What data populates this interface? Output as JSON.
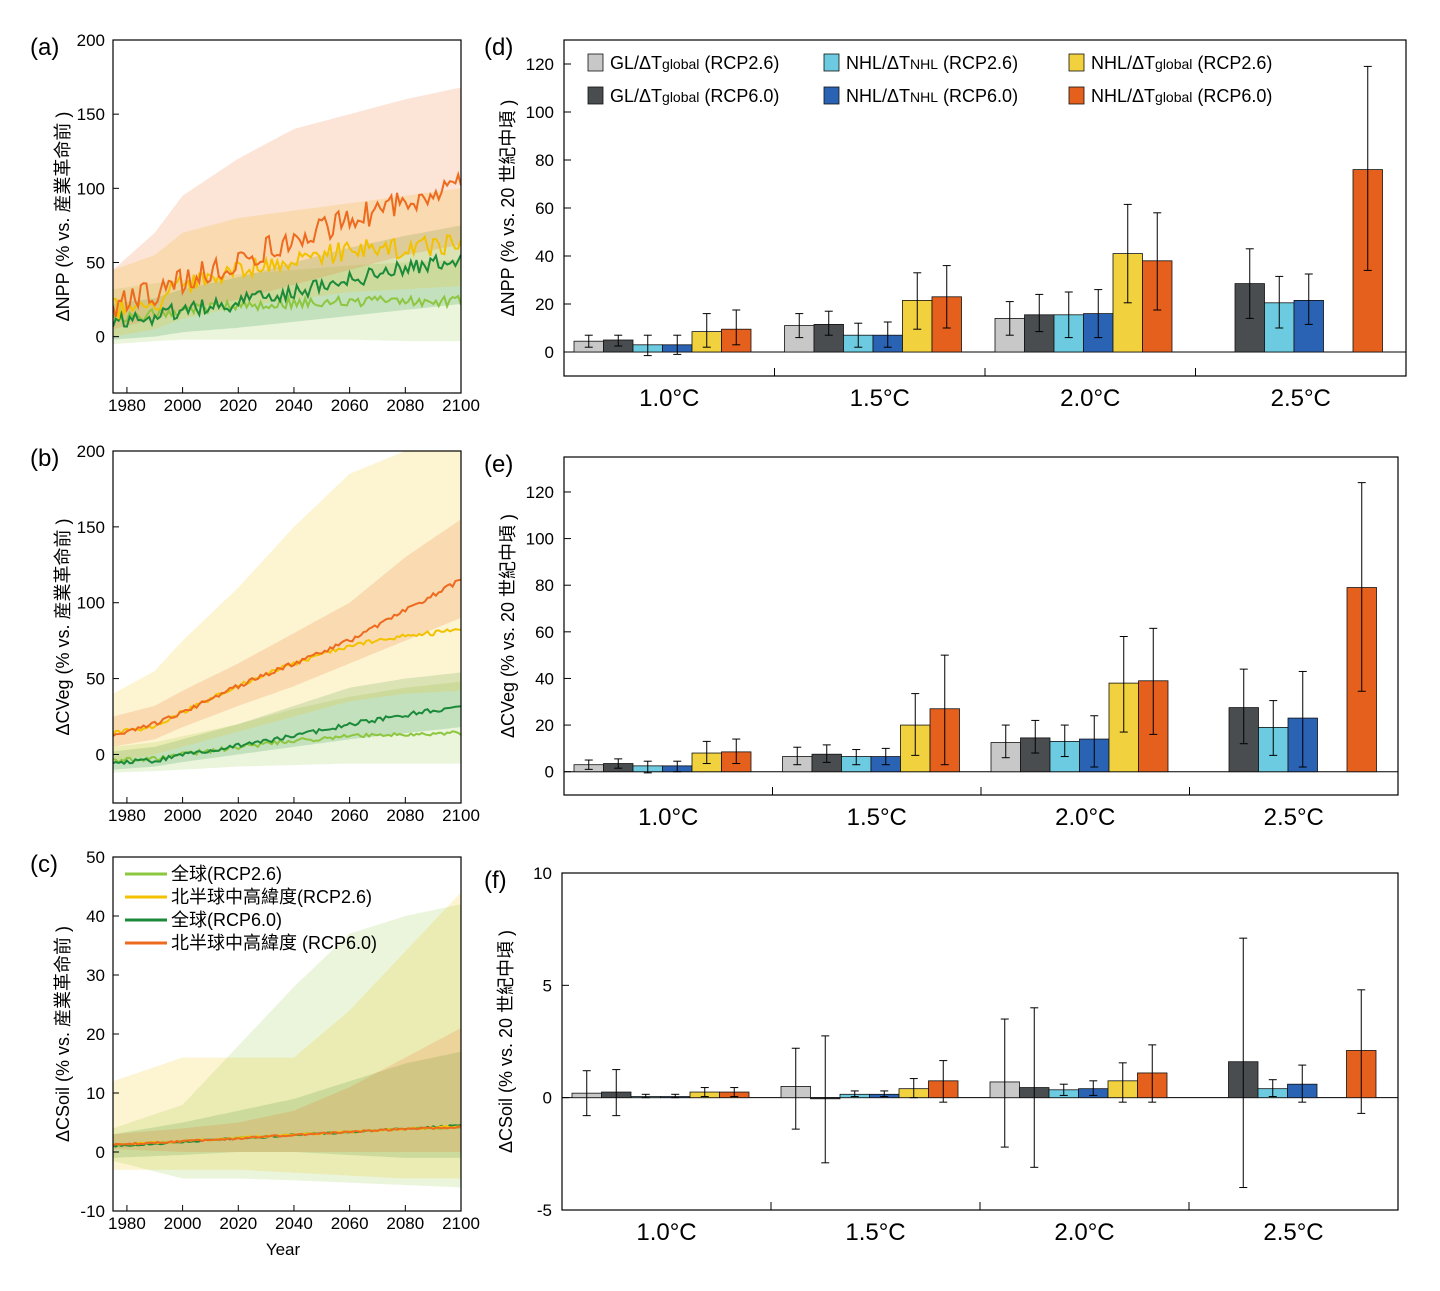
{
  "colors": {
    "gl_rcp26": "#8dc63f",
    "nhl_rcp26": "#f2c200",
    "gl_rcp60": "#1b8a3a",
    "nhl_rcp60": "#ee6a1f",
    "bar_gl26": "#c8c8c8",
    "bar_gl60": "#4a4d4f",
    "bar_nhl_n26": "#6ccbe0",
    "bar_nhl_n60": "#2a62b4",
    "bar_nhl_g26": "#f1d23e",
    "bar_nhl_g60": "#e55f1d"
  },
  "panel_labels": [
    "(a)",
    "(b)",
    "(c)",
    "(d)",
    "(e)",
    "(f)"
  ],
  "chart_data": [
    {
      "id": "a",
      "type": "line",
      "ylabel": "ΔNPP (% vs. 産業革命前 )",
      "xlim": [
        1975,
        2100
      ],
      "ylim": [
        -38,
        200
      ],
      "xticks": [
        1980,
        2000,
        2020,
        2040,
        2060,
        2080,
        2100
      ],
      "yticks": [
        0,
        50,
        100,
        150,
        200
      ],
      "series": [
        {
          "key": "gl_rcp26",
          "color": "#8dc63f",
          "x": [
            1975,
            1990,
            2000,
            2020,
            2040,
            2060,
            2080,
            2100
          ],
          "y": [
            12,
            15,
            18,
            21,
            23,
            24,
            24,
            24
          ],
          "lo": [
            -5,
            -3,
            -2,
            -2,
            -2,
            -2,
            -3,
            -3
          ],
          "hi": [
            32,
            36,
            38,
            42,
            45,
            48,
            50,
            52
          ]
        },
        {
          "key": "gl_rcp60",
          "color": "#1b8a3a",
          "x": [
            1975,
            1990,
            2000,
            2020,
            2040,
            2060,
            2080,
            2100
          ],
          "y": [
            10,
            14,
            18,
            23,
            30,
            38,
            46,
            52
          ],
          "lo": [
            -2,
            0,
            3,
            6,
            10,
            14,
            18,
            22
          ],
          "hi": [
            22,
            26,
            32,
            40,
            50,
            60,
            68,
            75
          ]
        },
        {
          "key": "nhl_rcp26",
          "color": "#f2c200",
          "x": [
            1975,
            1990,
            2000,
            2020,
            2040,
            2060,
            2080,
            2100
          ],
          "y": [
            18,
            22,
            35,
            45,
            52,
            58,
            60,
            62
          ],
          "lo": [
            0,
            5,
            12,
            20,
            25,
            30,
            32,
            34
          ],
          "hi": [
            45,
            55,
            70,
            80,
            85,
            90,
            95,
            100
          ]
        },
        {
          "key": "nhl_rcp60",
          "color": "#ee6a1f",
          "x": [
            1975,
            1990,
            2000,
            2020,
            2040,
            2060,
            2080,
            2100
          ],
          "y": [
            20,
            30,
            38,
            52,
            65,
            78,
            92,
            102
          ],
          "lo": [
            5,
            12,
            18,
            25,
            35,
            45,
            55,
            62
          ],
          "hi": [
            45,
            70,
            95,
            120,
            140,
            150,
            160,
            168
          ]
        }
      ]
    },
    {
      "id": "b",
      "type": "line",
      "ylabel": "ΔCVeg (% vs. 産業革命前 )",
      "xlim": [
        1975,
        2100
      ],
      "ylim": [
        -32,
        200
      ],
      "xticks": [
        1980,
        2000,
        2020,
        2040,
        2060,
        2080,
        2100
      ],
      "yticks": [
        0,
        50,
        100,
        150,
        200
      ],
      "series": [
        {
          "key": "gl_rcp26",
          "color": "#8dc63f",
          "x": [
            1975,
            1990,
            2000,
            2020,
            2040,
            2060,
            2080,
            2100
          ],
          "y": [
            -4,
            -3,
            0,
            5,
            9,
            12,
            13,
            14
          ],
          "lo": [
            -12,
            -11,
            -10,
            -8,
            -7,
            -6,
            -6,
            -6
          ],
          "hi": [
            5,
            8,
            12,
            20,
            30,
            38,
            44,
            48
          ]
        },
        {
          "key": "gl_rcp60",
          "color": "#1b8a3a",
          "x": [
            1975,
            1990,
            2000,
            2020,
            2040,
            2060,
            2080,
            2100
          ],
          "y": [
            -5,
            -4,
            0,
            6,
            12,
            20,
            26,
            32
          ],
          "lo": [
            -10,
            -8,
            -5,
            0,
            5,
            10,
            14,
            18
          ],
          "hi": [
            2,
            5,
            10,
            20,
            32,
            44,
            50,
            54
          ]
        },
        {
          "key": "nhl_rcp26",
          "color": "#f2c200",
          "x": [
            1975,
            1990,
            2000,
            2020,
            2040,
            2060,
            2080,
            2100
          ],
          "y": [
            14,
            18,
            28,
            45,
            60,
            72,
            78,
            82
          ],
          "lo": [
            -5,
            0,
            5,
            15,
            25,
            35,
            40,
            42
          ],
          "hi": [
            40,
            55,
            75,
            110,
            150,
            185,
            200,
            200
          ]
        },
        {
          "key": "nhl_rcp60",
          "color": "#ee6a1f",
          "x": [
            1975,
            1990,
            2000,
            2020,
            2040,
            2060,
            2080,
            2100
          ],
          "y": [
            13,
            20,
            28,
            45,
            60,
            75,
            95,
            115
          ],
          "lo": [
            5,
            10,
            18,
            32,
            45,
            60,
            75,
            90
          ],
          "hi": [
            25,
            32,
            42,
            60,
            80,
            100,
            130,
            155
          ]
        }
      ]
    },
    {
      "id": "c",
      "type": "line",
      "xlabel": "Year",
      "ylabel": "ΔCSoil (% vs. 産業革命前 )",
      "xlim": [
        1975,
        2100
      ],
      "ylim": [
        -10,
        50
      ],
      "xticks": [
        1980,
        2000,
        2020,
        2040,
        2060,
        2080,
        2100
      ],
      "yticks": [
        -10,
        0,
        10,
        20,
        30,
        40,
        50
      ],
      "legend": {
        "position": "top-left",
        "entries": [
          {
            "key": "gl_rcp26",
            "label": "全球(RCP2.6)"
          },
          {
            "key": "nhl_rcp26",
            "label": "北半球中高緯度(RCP2.6)"
          },
          {
            "key": "gl_rcp60",
            "label": "全球(RCP6.0)"
          },
          {
            "key": "nhl_rcp60",
            "label": "北半球中高緯度 (RCP6.0)"
          }
        ]
      },
      "series": [
        {
          "key": "gl_rcp26",
          "color": "#8dc63f",
          "x": [
            1975,
            2000,
            2020,
            2040,
            2060,
            2080,
            2100
          ],
          "y": [
            1.2,
            1.8,
            2.4,
            2.9,
            3.4,
            3.9,
            4.2
          ],
          "lo": [
            -1.5,
            -4.5,
            -4.5,
            -4.8,
            -5.2,
            -5.6,
            -6
          ],
          "hi": [
            4,
            8,
            18,
            28,
            37,
            40,
            42
          ]
        },
        {
          "key": "gl_rcp60",
          "color": "#1b8a3a",
          "x": [
            1975,
            2000,
            2020,
            2040,
            2060,
            2080,
            2100
          ],
          "y": [
            1,
            1.7,
            2.3,
            2.9,
            3.4,
            4,
            4.5
          ],
          "lo": [
            -1,
            -0.5,
            0,
            0,
            -0.5,
            -1,
            -1
          ],
          "hi": [
            3,
            5,
            7,
            9,
            12,
            15,
            17
          ]
        },
        {
          "key": "nhl_rcp26",
          "color": "#f2c200",
          "x": [
            1975,
            2000,
            2020,
            2040,
            2060,
            2080,
            2100
          ],
          "y": [
            1.2,
            1.8,
            2.4,
            2.9,
            3.4,
            3.9,
            4.3
          ],
          "lo": [
            -3,
            -3,
            -3,
            -3.5,
            -4,
            -4.5,
            -4.5
          ],
          "hi": [
            12,
            16,
            16,
            16,
            24,
            34,
            44
          ]
        },
        {
          "key": "nhl_rcp60",
          "color": "#ee6a1f",
          "x": [
            1975,
            2000,
            2020,
            2040,
            2060,
            2080,
            2100
          ],
          "y": [
            1.2,
            1.8,
            2.3,
            2.9,
            3.4,
            3.9,
            4.2
          ],
          "lo": [
            0.5,
            0,
            0,
            0,
            0,
            0,
            0
          ],
          "hi": [
            3,
            4,
            5,
            7,
            11,
            16,
            21
          ]
        }
      ]
    },
    {
      "id": "d",
      "type": "bar",
      "ylabel": "ΔNPP (% vs. 20 世紀中頃 )",
      "categories": [
        "1.0°C",
        "1.5°C",
        "2.0°C",
        "2.5°C"
      ],
      "ylim": [
        -10,
        130
      ],
      "yticks": [
        0,
        20,
        40,
        60,
        80,
        100,
        120
      ],
      "legend": {
        "position": "top-left",
        "entries": [
          {
            "key": "bar_gl26",
            "pre": "GL/ΔT",
            "sub": "global",
            "post": " (RCP2.6)"
          },
          {
            "key": "bar_gl60",
            "pre": "GL/ΔT",
            "sub": "global",
            "post": " (RCP6.0)"
          },
          {
            "key": "bar_nhl_n26",
            "pre": "NHL/ΔT",
            "sub": "NHL",
            "post": " (RCP2.6)"
          },
          {
            "key": "bar_nhl_n60",
            "pre": "NHL/ΔT",
            "sub": "NHL",
            "post": " (RCP6.0)"
          },
          {
            "key": "bar_nhl_g26",
            "pre": "NHL/ΔT",
            "sub": "global",
            "post": " (RCP2.6)"
          },
          {
            "key": "bar_nhl_g60",
            "pre": "NHL/ΔT",
            "sub": "global",
            "post": " (RCP6.0)"
          }
        ]
      },
      "series": [
        {
          "key": "bar_gl26",
          "values": [
            4.5,
            11,
            14,
            null
          ],
          "lo": [
            2,
            6,
            7,
            null
          ],
          "hi": [
            7,
            16,
            21,
            null
          ]
        },
        {
          "key": "bar_gl60",
          "values": [
            5,
            11.5,
            15.5,
            28.5
          ],
          "lo": [
            2.5,
            7,
            8.5,
            14
          ],
          "hi": [
            7,
            17,
            24,
            43
          ]
        },
        {
          "key": "bar_nhl_n26",
          "values": [
            3,
            7,
            15.5,
            20.5
          ],
          "lo": [
            -1.5,
            2,
            6,
            10
          ],
          "hi": [
            7,
            12,
            25,
            31.5
          ]
        },
        {
          "key": "bar_nhl_n60",
          "values": [
            3,
            7,
            16,
            21.5
          ],
          "lo": [
            -1,
            2,
            6,
            11.5
          ],
          "hi": [
            7,
            12.5,
            26,
            32.5
          ]
        },
        {
          "key": "bar_nhl_g26",
          "values": [
            8.5,
            21.5,
            41,
            null
          ],
          "lo": [
            2,
            9.5,
            20.5,
            null
          ],
          "hi": [
            16,
            33,
            61.5,
            null
          ]
        },
        {
          "key": "bar_nhl_g60",
          "values": [
            9.5,
            23,
            38,
            76
          ],
          "lo": [
            3,
            10,
            17.5,
            34
          ],
          "hi": [
            17.5,
            36,
            58,
            119
          ]
        }
      ]
    },
    {
      "id": "e",
      "type": "bar",
      "ylabel": "ΔCVeg (% vs. 20 世紀中頃 )",
      "categories": [
        "1.0°C",
        "1.5°C",
        "2.0°C",
        "2.5°C"
      ],
      "ylim": [
        -10,
        135
      ],
      "yticks": [
        0,
        20,
        40,
        60,
        80,
        100,
        120
      ],
      "series": [
        {
          "key": "bar_gl26",
          "values": [
            3,
            6.5,
            12.5,
            null
          ],
          "lo": [
            1,
            3,
            6,
            null
          ],
          "hi": [
            5,
            10.5,
            20,
            null
          ]
        },
        {
          "key": "bar_gl60",
          "values": [
            3.5,
            7.5,
            14.5,
            27.5
          ],
          "lo": [
            1.5,
            4,
            8,
            12
          ],
          "hi": [
            5.5,
            11.5,
            22,
            44
          ]
        },
        {
          "key": "bar_nhl_n26",
          "values": [
            2.5,
            6.5,
            13,
            19
          ],
          "lo": [
            -0.5,
            3,
            6.5,
            7
          ],
          "hi": [
            4.5,
            9.5,
            20,
            30.5
          ]
        },
        {
          "key": "bar_nhl_n60",
          "values": [
            2.5,
            6.5,
            14,
            23
          ],
          "lo": [
            0,
            3,
            2,
            2
          ],
          "hi": [
            4.5,
            10,
            24,
            43
          ]
        },
        {
          "key": "bar_nhl_g26",
          "values": [
            8,
            20,
            38,
            null
          ],
          "lo": [
            3.5,
            7,
            17,
            null
          ],
          "hi": [
            13,
            33.5,
            58,
            null
          ]
        },
        {
          "key": "bar_nhl_g60",
          "values": [
            8.5,
            27,
            39,
            79
          ],
          "lo": [
            3.5,
            3,
            16,
            34.5
          ],
          "hi": [
            14,
            50,
            61.5,
            124
          ]
        }
      ]
    },
    {
      "id": "f",
      "type": "bar",
      "ylabel": "ΔCSoil (% vs. 20 世紀中頃 )",
      "categories": [
        "1.0°C",
        "1.5°C",
        "2.0°C",
        "2.5°C"
      ],
      "ylim": [
        -5,
        10
      ],
      "yticks": [
        -5,
        0,
        5,
        10
      ],
      "series": [
        {
          "key": "bar_gl26",
          "values": [
            0.2,
            0.5,
            0.7,
            null
          ],
          "lo": [
            -0.8,
            -1.4,
            -2.2,
            null
          ],
          "hi": [
            1.2,
            2.2,
            3.5,
            null
          ]
        },
        {
          "key": "bar_gl60",
          "values": [
            0.25,
            -0.05,
            0.45,
            1.6
          ],
          "lo": [
            -0.8,
            -2.9,
            -3.1,
            -4
          ],
          "hi": [
            1.25,
            2.75,
            4,
            7.1
          ]
        },
        {
          "key": "bar_nhl_n26",
          "values": [
            0.05,
            0.15,
            0.35,
            0.4
          ],
          "lo": [
            0,
            0.05,
            0.1,
            0.05
          ],
          "hi": [
            0.15,
            0.3,
            0.6,
            0.8
          ]
        },
        {
          "key": "bar_nhl_n60",
          "values": [
            0.05,
            0.15,
            0.4,
            0.6
          ],
          "lo": [
            0,
            0.05,
            0.1,
            -0.2
          ],
          "hi": [
            0.15,
            0.3,
            0.75,
            1.45
          ]
        },
        {
          "key": "bar_nhl_g26",
          "values": [
            0.25,
            0.4,
            0.75,
            null
          ],
          "lo": [
            0.05,
            0,
            -0.2,
            null
          ],
          "hi": [
            0.45,
            0.85,
            1.55,
            null
          ]
        },
        {
          "key": "bar_nhl_g60",
          "values": [
            0.25,
            0.75,
            1.1,
            2.1
          ],
          "lo": [
            0.05,
            -0.2,
            -0.2,
            -0.7
          ],
          "hi": [
            0.45,
            1.65,
            2.35,
            4.8
          ]
        }
      ]
    }
  ]
}
